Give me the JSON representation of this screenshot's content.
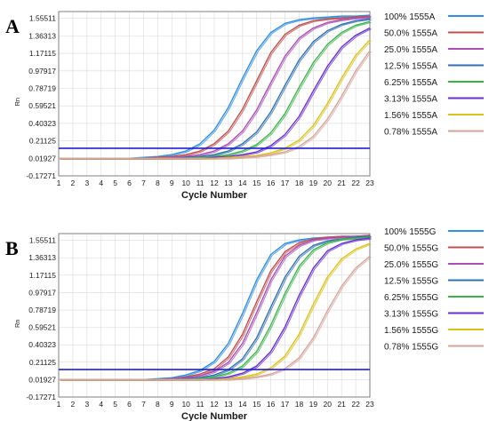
{
  "chart_data": [
    {
      "type": "line",
      "panel_label": "A",
      "title": "",
      "xlabel": "Cycle Number",
      "ylabel": "Rn",
      "x_ticks": [
        "1",
        "2",
        "3",
        "4",
        "5",
        "6",
        "7",
        "8",
        "9",
        "10",
        "11",
        "12",
        "13",
        "14",
        "15",
        "16",
        "17",
        "18",
        "19",
        "20",
        "21",
        "22",
        "23"
      ],
      "y_ticks": [
        "-0.17271",
        "0.01927",
        "0.21125",
        "0.40323",
        "0.59521",
        "0.78719",
        "0.97917",
        "1.17115",
        "1.36313",
        "1.55511"
      ],
      "xlim": [
        1,
        23
      ],
      "ylim": [
        -0.17271,
        1.63
      ],
      "threshold": 0.13,
      "grid": true,
      "legend_position": "right",
      "series": [
        {
          "name": "100% 1555A",
          "color": "#2f8fe0",
          "values": [
            0.02,
            0.02,
            0.02,
            0.02,
            0.02,
            0.02,
            0.03,
            0.04,
            0.06,
            0.1,
            0.18,
            0.33,
            0.58,
            0.9,
            1.2,
            1.4,
            1.5,
            1.54,
            1.56,
            1.57,
            1.58,
            1.58,
            1.59
          ]
        },
        {
          "name": "50.0% 1555A",
          "color": "#c0504d",
          "values": [
            0.02,
            0.02,
            0.02,
            0.02,
            0.02,
            0.02,
            0.02,
            0.03,
            0.04,
            0.06,
            0.1,
            0.18,
            0.32,
            0.56,
            0.87,
            1.18,
            1.38,
            1.48,
            1.53,
            1.55,
            1.56,
            1.57,
            1.58
          ]
        },
        {
          "name": "25.0% 1555A",
          "color": "#a94fb5",
          "values": [
            0.02,
            0.02,
            0.02,
            0.02,
            0.02,
            0.02,
            0.02,
            0.02,
            0.03,
            0.04,
            0.06,
            0.1,
            0.18,
            0.32,
            0.55,
            0.85,
            1.14,
            1.34,
            1.45,
            1.51,
            1.54,
            1.56,
            1.57
          ]
        },
        {
          "name": "12.5% 1555A",
          "color": "#3070b3",
          "values": [
            0.02,
            0.02,
            0.02,
            0.02,
            0.02,
            0.02,
            0.02,
            0.02,
            0.02,
            0.03,
            0.04,
            0.06,
            0.1,
            0.18,
            0.31,
            0.53,
            0.82,
            1.1,
            1.3,
            1.42,
            1.49,
            1.53,
            1.55
          ]
        },
        {
          "name": "6.25% 1555A",
          "color": "#3cb44b",
          "values": [
            0.02,
            0.02,
            0.02,
            0.02,
            0.02,
            0.02,
            0.02,
            0.02,
            0.02,
            0.02,
            0.03,
            0.04,
            0.06,
            0.1,
            0.17,
            0.3,
            0.51,
            0.8,
            1.07,
            1.27,
            1.4,
            1.48,
            1.52
          ]
        },
        {
          "name": "3.13% 1555A",
          "color": "#6a2fd0",
          "values": [
            0.02,
            0.02,
            0.02,
            0.02,
            0.02,
            0.02,
            0.02,
            0.02,
            0.02,
            0.02,
            0.02,
            0.03,
            0.04,
            0.06,
            0.09,
            0.16,
            0.28,
            0.48,
            0.76,
            1.03,
            1.24,
            1.37,
            1.45
          ]
        },
        {
          "name": "1.56% 1555A",
          "color": "#d9c21c",
          "values": [
            0.02,
            0.02,
            0.02,
            0.02,
            0.02,
            0.02,
            0.02,
            0.02,
            0.02,
            0.02,
            0.02,
            0.02,
            0.03,
            0.04,
            0.05,
            0.08,
            0.13,
            0.22,
            0.38,
            0.62,
            0.9,
            1.15,
            1.32
          ]
        },
        {
          "name": "0.78% 1555A",
          "color": "#d4a59a",
          "values": [
            0.02,
            0.02,
            0.02,
            0.02,
            0.02,
            0.02,
            0.02,
            0.02,
            0.02,
            0.02,
            0.02,
            0.02,
            0.02,
            0.03,
            0.04,
            0.06,
            0.09,
            0.15,
            0.26,
            0.45,
            0.7,
            0.98,
            1.2
          ]
        }
      ]
    },
    {
      "type": "line",
      "panel_label": "B",
      "title": "",
      "xlabel": "Cycle Number",
      "ylabel": "Rn",
      "x_ticks": [
        "1",
        "2",
        "3",
        "4",
        "5",
        "6",
        "7",
        "8",
        "9",
        "10",
        "11",
        "12",
        "13",
        "14",
        "15",
        "16",
        "17",
        "18",
        "19",
        "20",
        "21",
        "22",
        "23"
      ],
      "y_ticks": [
        "-0.17271",
        "0.01927",
        "0.21125",
        "0.40323",
        "0.59521",
        "0.78719",
        "0.97917",
        "1.17115",
        "1.36313",
        "1.55511"
      ],
      "xlim": [
        1,
        23
      ],
      "ylim": [
        -0.17271,
        1.63
      ],
      "threshold": 0.13,
      "grid": true,
      "legend_position": "right",
      "series": [
        {
          "name": "100% 1555G",
          "color": "#2f8fe0",
          "values": [
            0.02,
            0.02,
            0.02,
            0.02,
            0.02,
            0.02,
            0.02,
            0.03,
            0.04,
            0.07,
            0.12,
            0.22,
            0.42,
            0.75,
            1.12,
            1.4,
            1.52,
            1.56,
            1.58,
            1.59,
            1.6,
            1.6,
            1.61
          ]
        },
        {
          "name": "50.0% 1555G",
          "color": "#c0504d",
          "values": [
            0.02,
            0.02,
            0.02,
            0.02,
            0.02,
            0.02,
            0.02,
            0.02,
            0.03,
            0.05,
            0.08,
            0.14,
            0.27,
            0.52,
            0.88,
            1.22,
            1.43,
            1.53,
            1.57,
            1.59,
            1.6,
            1.6,
            1.61
          ]
        },
        {
          "name": "25.0% 1555G",
          "color": "#a94fb5",
          "values": [
            0.02,
            0.02,
            0.02,
            0.02,
            0.02,
            0.02,
            0.02,
            0.02,
            0.03,
            0.04,
            0.06,
            0.11,
            0.21,
            0.42,
            0.76,
            1.12,
            1.38,
            1.5,
            1.56,
            1.58,
            1.59,
            1.6,
            1.6
          ]
        },
        {
          "name": "12.5% 1555G",
          "color": "#3070b3",
          "values": [
            0.02,
            0.02,
            0.02,
            0.02,
            0.02,
            0.02,
            0.02,
            0.02,
            0.02,
            0.03,
            0.04,
            0.07,
            0.13,
            0.25,
            0.48,
            0.82,
            1.15,
            1.38,
            1.5,
            1.55,
            1.57,
            1.59,
            1.6
          ]
        },
        {
          "name": "6.25% 1555G",
          "color": "#3cb44b",
          "values": [
            0.02,
            0.02,
            0.02,
            0.02,
            0.02,
            0.02,
            0.02,
            0.02,
            0.02,
            0.02,
            0.03,
            0.05,
            0.09,
            0.17,
            0.33,
            0.62,
            0.97,
            1.27,
            1.45,
            1.53,
            1.57,
            1.58,
            1.59
          ]
        },
        {
          "name": "3.13% 1555G",
          "color": "#6a2fd0",
          "values": [
            0.02,
            0.02,
            0.02,
            0.02,
            0.02,
            0.02,
            0.02,
            0.02,
            0.02,
            0.02,
            0.02,
            0.03,
            0.05,
            0.09,
            0.17,
            0.33,
            0.6,
            0.95,
            1.25,
            1.44,
            1.52,
            1.56,
            1.58
          ]
        },
        {
          "name": "1.56% 1555G",
          "color": "#d9c21c",
          "values": [
            0.02,
            0.02,
            0.02,
            0.02,
            0.02,
            0.02,
            0.02,
            0.02,
            0.02,
            0.02,
            0.02,
            0.02,
            0.03,
            0.05,
            0.08,
            0.15,
            0.28,
            0.52,
            0.85,
            1.15,
            1.35,
            1.46,
            1.52
          ]
        },
        {
          "name": "0.78% 1555G",
          "color": "#d4a59a",
          "values": [
            0.02,
            0.02,
            0.02,
            0.02,
            0.02,
            0.02,
            0.02,
            0.02,
            0.02,
            0.02,
            0.02,
            0.02,
            0.02,
            0.03,
            0.05,
            0.08,
            0.14,
            0.26,
            0.48,
            0.78,
            1.05,
            1.25,
            1.38
          ]
        }
      ]
    }
  ],
  "colors": {
    "threshold": "#1f1fd6",
    "grid": "#d9d9d9",
    "frame": "#7f7f7f",
    "label_text": "#1a1a1a"
  }
}
